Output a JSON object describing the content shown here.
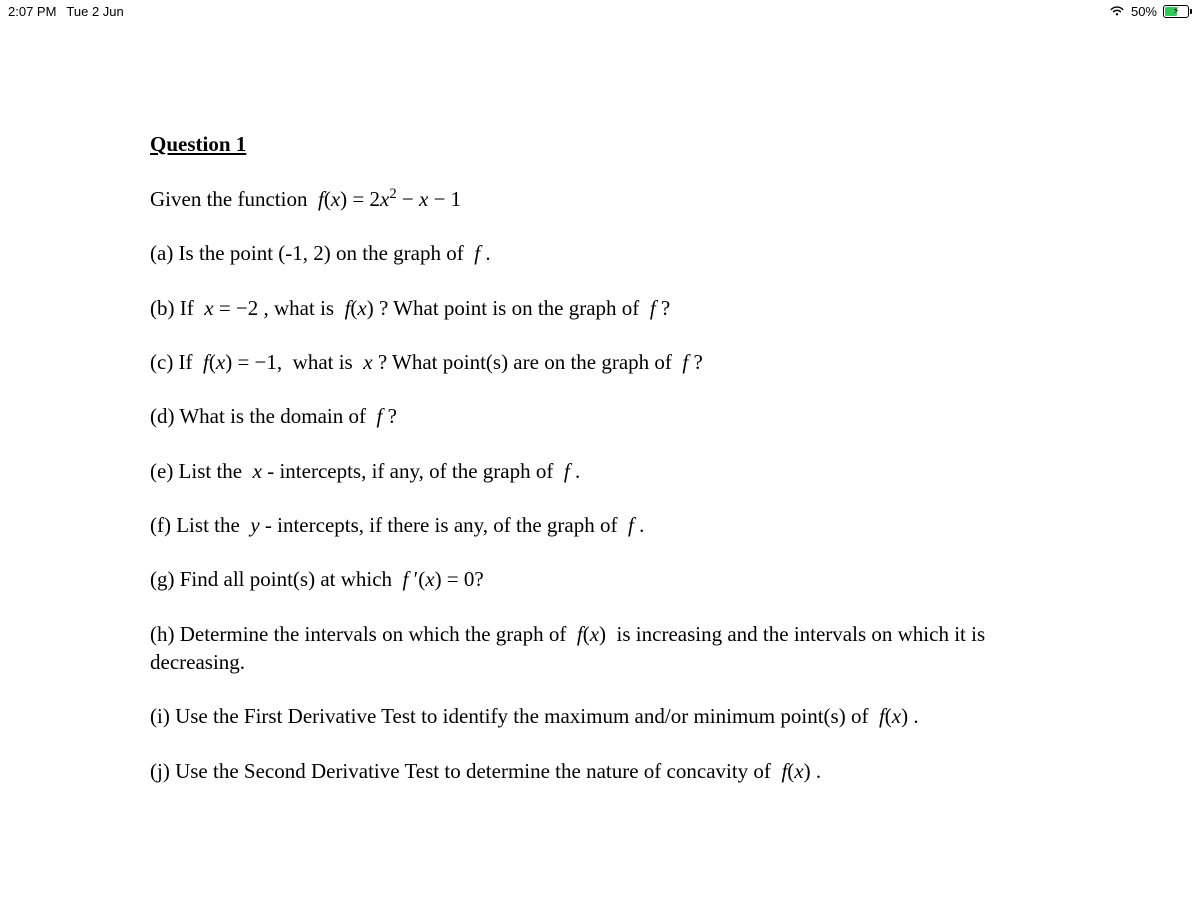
{
  "status_bar": {
    "time": "2:07 PM",
    "date": "Tue 2 Jun",
    "battery_percent": "50%",
    "battery_fill_color": "#34c759",
    "battery_fill_ratio": 0.5,
    "text_color": "#000000",
    "font_size_pt": 13
  },
  "document": {
    "background_color": "#ffffff",
    "text_color": "#000000",
    "font_family": "Times New Roman",
    "body_font_size_pt": 21,
    "title": "Question 1",
    "given_prefix": "Given the function  ",
    "given_math_html": "<span class='math'>f</span>(<span class='math'>x</span>) = 2<span class='math'>x</span><span class='sup'>2</span> − <span class='math'>x</span> − 1",
    "parts": [
      {
        "key": "a",
        "html": "(a) Is the point (-1, 2) on the graph of  <span class='math'>f</span> ."
      },
      {
        "key": "b",
        "html": "(b) If  <span class='math'>x</span> = −2 , what is  <span class='math'>f</span>(<span class='math'>x</span>) ? What point is on the graph of  <span class='math'>f</span> ?"
      },
      {
        "key": "c",
        "html": "(c) If  <span class='math'>f</span>(<span class='math'>x</span>) = −1,  what is  <span class='math'>x</span> ? What point(s) are on the graph of  <span class='math'>f</span> ?"
      },
      {
        "key": "d",
        "html": "(d) What is the domain of  <span class='math'>f</span> ?"
      },
      {
        "key": "e",
        "html": "(e) List the  <span class='math'>x</span> - intercepts, if any, of the graph of  <span class='math'>f</span> ."
      },
      {
        "key": "f",
        "html": "(f) List the  <span class='math'>y</span> - intercepts, if there is any, of the graph of  <span class='math'>f</span> ."
      },
      {
        "key": "g",
        "html": "(g) Find all point(s) at which  <span class='math'>f</span> <span class='prime'>′</span>(<span class='math'>x</span>) = 0?"
      },
      {
        "key": "h",
        "html": "(h) Determine the intervals on which the graph of  <span class='math'>f</span>(<span class='math'>x</span>)  is increasing and the intervals on which it is decreasing."
      },
      {
        "key": "i",
        "html": "(i) Use the First Derivative Test to identify the maximum and/or minimum point(s) of  <span class='math'>f</span>(<span class='math'>x</span>) ."
      },
      {
        "key": "j",
        "html": "(j) Use the Second Derivative Test to determine the nature of concavity of  <span class='math'>f</span>(<span class='math'>x</span>) ."
      }
    ]
  }
}
